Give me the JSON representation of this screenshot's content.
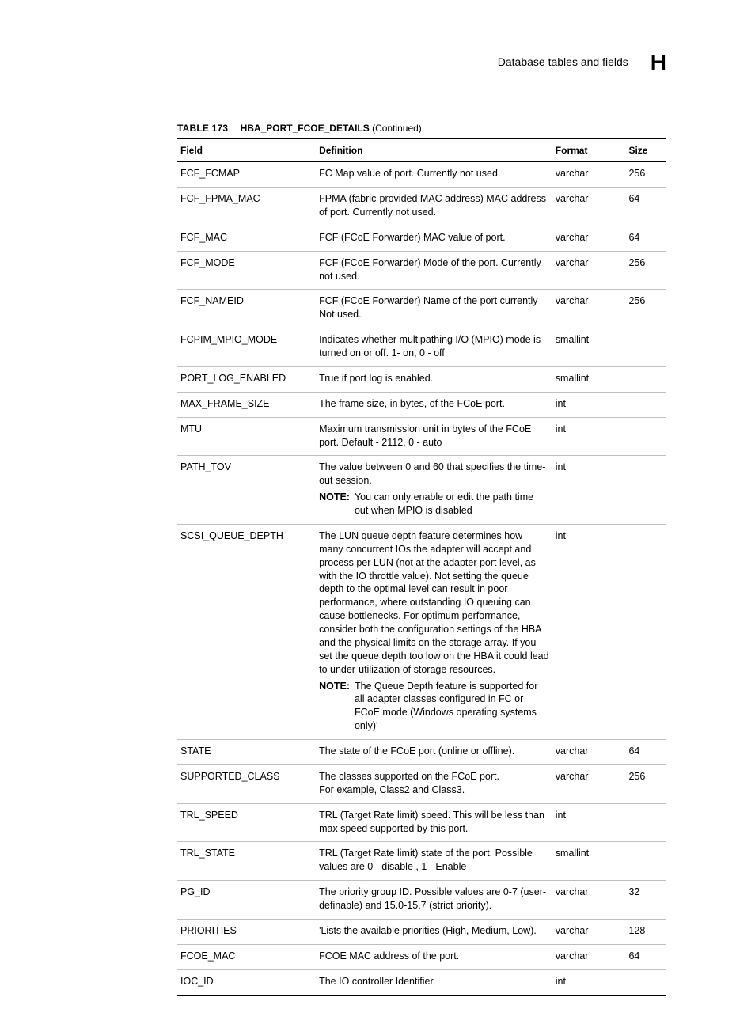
{
  "header": {
    "section_title": "Database tables and fields",
    "appendix_letter": "H"
  },
  "table": {
    "caption_prefix": "TABLE 173",
    "caption_name": "HBA_PORT_FCOE_DETAILS",
    "caption_suffix": "(Continued)",
    "columns": {
      "field": "Field",
      "definition": "Definition",
      "format": "Format",
      "size": "Size"
    },
    "rows": [
      {
        "field": "FCF_FCMAP",
        "def": "FC Map value of port. Currently not used.",
        "fmt": "varchar",
        "size": "256"
      },
      {
        "field": "FCF_FPMA_MAC",
        "def": "FPMA (fabric-provided MAC address) MAC address of port. Currently not used.",
        "fmt": "varchar",
        "size": "64"
      },
      {
        "field": "FCF_MAC",
        "def": "FCF (FCoE Forwarder) MAC value of port.",
        "fmt": "varchar",
        "size": "64"
      },
      {
        "field": "FCF_MODE",
        "def": "FCF (FCoE Forwarder) Mode of the port. Currently not used.",
        "fmt": "varchar",
        "size": "256"
      },
      {
        "field": "FCF_NAMEID",
        "def": "FCF (FCoE Forwarder) Name of the port currently Not used.",
        "fmt": "varchar",
        "size": "256"
      },
      {
        "field": "FCPIM_MPIO_MODE",
        "def": "Indicates whether multipathing I/O (MPIO) mode is turned on or off. 1- on, 0 - off",
        "fmt": "smallint",
        "size": ""
      },
      {
        "field": "PORT_LOG_ENABLED",
        "def": "True if port log is enabled.",
        "fmt": "smallint",
        "size": ""
      },
      {
        "field": "MAX_FRAME_SIZE",
        "def": "The frame size, in bytes, of the FCoE port.",
        "fmt": "int",
        "size": ""
      },
      {
        "field": "MTU",
        "def": "Maximum transmission unit in bytes of the FCoE port. Default - 2112, 0 - auto",
        "fmt": "int",
        "size": ""
      },
      {
        "field": "PATH_TOV",
        "def": "The value between 0 and 60 that specifies the time-out session.",
        "note_label": "NOTE:",
        "note_body": "You can only enable or edit the path time out when MPIO is disabled",
        "fmt": "int",
        "size": ""
      },
      {
        "field": "SCSI_QUEUE_DEPTH",
        "def": "The LUN queue depth feature determines how many concurrent IOs the adapter will accept and process per LUN (not at the adapter port level, as with the IO throttle value). Not setting the queue depth to the optimal level can result in poor performance, where outstanding IO queuing can cause bottlenecks. For optimum performance, consider both the configuration settings of the HBA and the physical limits on the storage array. If you set the queue depth too low on the HBA it could lead to under-utilization of storage resources.",
        "note_label": "NOTE:",
        "note_body": "The Queue Depth feature is supported for all adapter classes configured in FC or FCoE mode (Windows operating systems only)'",
        "fmt": "int",
        "size": ""
      },
      {
        "field": "STATE",
        "def": "The state of the FCoE port (online or offline).",
        "fmt": "varchar",
        "size": "64"
      },
      {
        "field": "SUPPORTED_CLASS",
        "def": "The classes supported on the FCoE port.",
        "def2": "For example, Class2 and Class3.",
        "fmt": "varchar",
        "size": "256"
      },
      {
        "field": "TRL_SPEED",
        "def": "TRL (Target Rate limit) speed. This will be less than max speed supported by this port.",
        "fmt": "int",
        "size": ""
      },
      {
        "field": "TRL_STATE",
        "def": "TRL (Target Rate limit)  state of the port. Possible values are 0 - disable , 1 - Enable",
        "fmt": "smallint",
        "size": ""
      },
      {
        "field": "PG_ID",
        "def": "The priority group ID. Possible values are 0-7 (user-definable) and 15.0-15.7 (strict priority).",
        "fmt": "varchar",
        "size": "32"
      },
      {
        "field": "PRIORITIES",
        "def": "'Lists the available priorities (High, Medium, Low).",
        "fmt": "varchar",
        "size": "128"
      },
      {
        "field": "FCOE_MAC",
        "def": "FCOE MAC address of the port.",
        "fmt": "varchar",
        "size": "64"
      },
      {
        "field": "IOC_ID",
        "def": "The IO controller Identifier.",
        "fmt": "int",
        "size": ""
      }
    ]
  }
}
